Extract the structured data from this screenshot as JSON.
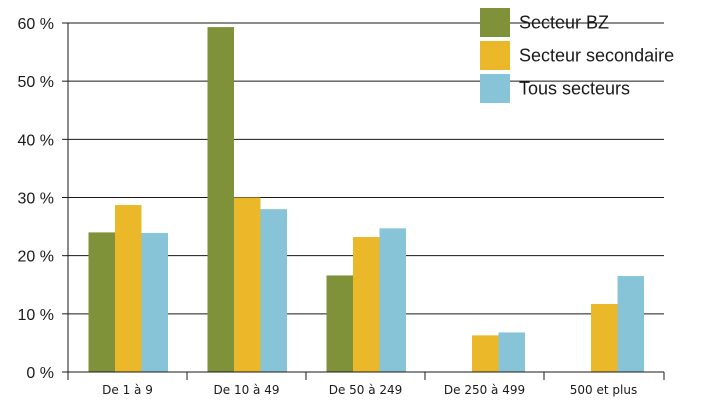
{
  "chart_data": {
    "type": "bar",
    "categories": [
      "De 1 à 9",
      "De 10 à 49",
      "De 50 à 249",
      "De 250 à 499",
      "500 et plus"
    ],
    "series": [
      {
        "name": "Secteur BZ",
        "color": "#7f923a",
        "values": [
          24.0,
          59.3,
          16.6,
          null,
          null
        ]
      },
      {
        "name": "Secteur secondaire",
        "color": "#eab828",
        "values": [
          28.7,
          30.0,
          23.2,
          6.3,
          11.7
        ]
      },
      {
        "name": "Tous secteurs",
        "color": "#88c4d8",
        "values": [
          23.9,
          28.0,
          24.7,
          6.8,
          16.5
        ]
      }
    ],
    "ylim": [
      0,
      60
    ],
    "yticks": [
      0,
      10,
      20,
      30,
      40,
      50,
      60
    ],
    "ytick_labels": [
      "0 %",
      "10 %",
      "20 %",
      "30 %",
      "40 %",
      "50 %",
      "60 %"
    ],
    "grid": true,
    "legend_position": "top-right"
  }
}
